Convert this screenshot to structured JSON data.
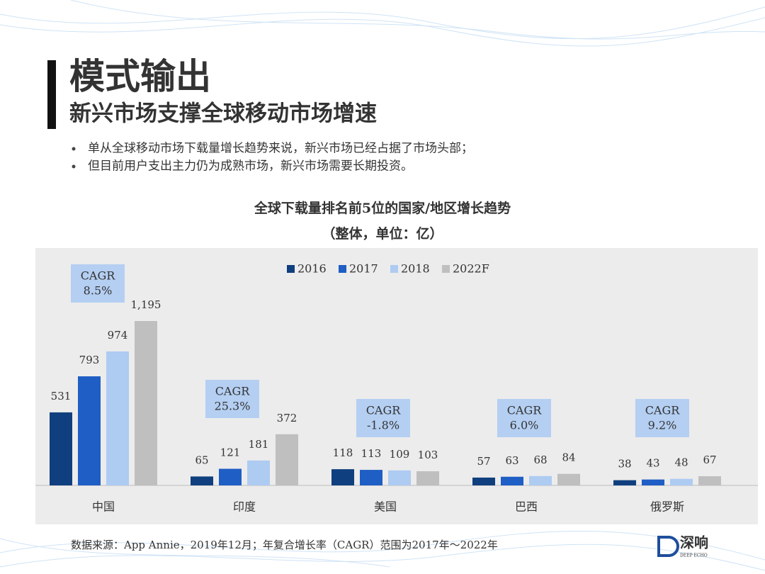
{
  "header": {
    "title": "模式输出",
    "subtitle": "新兴市场支撑全球移动市场增速"
  },
  "bullets": [
    "单从全球移动市场下载量增长趋势来说，新兴市场已经占据了市场头部；",
    "但目前用户支出主力仍为成熟市场，新兴市场需要长期投资。"
  ],
  "chart_data": {
    "type": "bar",
    "title": "全球下载量排名前5位的国家/地区增长趋势",
    "subtitle": "（整体，单位：亿）",
    "categories": [
      "中国",
      "印度",
      "美国",
      "巴西",
      "俄罗斯"
    ],
    "series": [
      {
        "name": "2016",
        "color": "#0f3f7e",
        "values": [
          531,
          65,
          118,
          57,
          38
        ]
      },
      {
        "name": "2017",
        "color": "#1f5ec4",
        "values": [
          793,
          121,
          113,
          63,
          43
        ]
      },
      {
        "name": "2018",
        "color": "#aecbf2",
        "values": [
          974,
          181,
          109,
          68,
          48
        ]
      },
      {
        "name": "2022F",
        "color": "#bfbfbf",
        "values": [
          1195,
          372,
          103,
          84,
          67
        ],
        "value_labels": [
          "1,195",
          "372",
          "103",
          "84",
          "67"
        ]
      }
    ],
    "annotations": [
      {
        "title": "CAGR",
        "label": "8.5%"
      },
      {
        "title": "CAGR",
        "label": "25.3%"
      },
      {
        "title": "CAGR",
        "label": "-1.8%"
      },
      {
        "title": "CAGR",
        "label": "6.0%"
      },
      {
        "title": "CAGR",
        "label": "9.2%"
      }
    ],
    "legend": "top"
  },
  "footer": {
    "source": "数据来源：App Annie，2019年12月；年复合增长率（CAGR）范围为2017年～2022年",
    "logo": "深响",
    "logo_sub": "DEEP ECHO"
  }
}
